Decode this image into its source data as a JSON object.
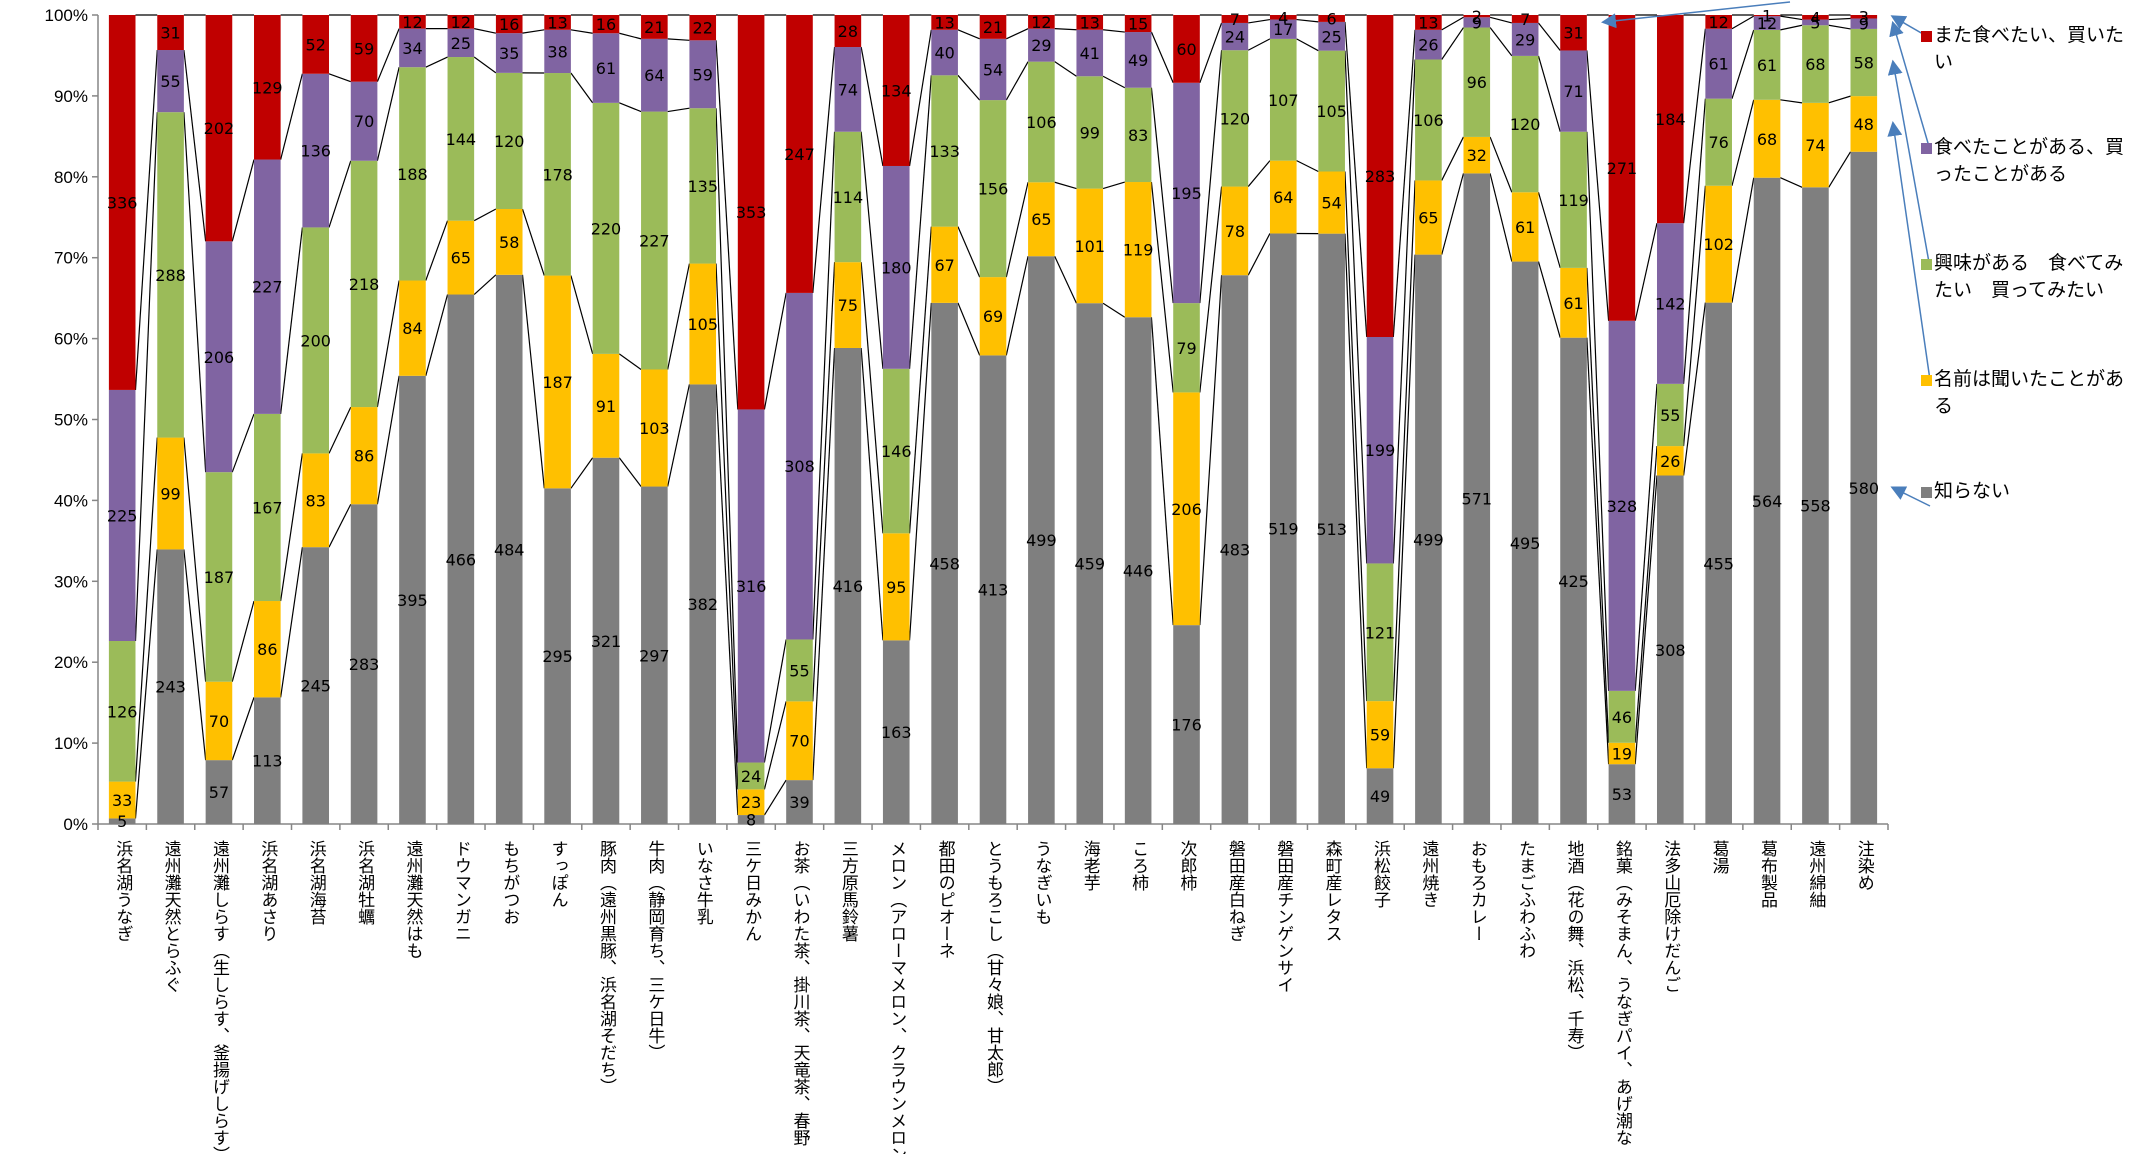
{
  "chart_data": {
    "type": "bar",
    "stacked": "percent",
    "ylim": [
      0,
      100
    ],
    "y_ticks": [
      "0%",
      "10%",
      "20%",
      "30%",
      "40%",
      "50%",
      "60%",
      "70%",
      "80%",
      "90%",
      "100%"
    ],
    "categories": [
      "浜名湖うなぎ",
      "遠州灘天然とらふぐ",
      "遠州灘しらす（生しらす、釜揚げしらす）",
      "浜名湖あさり",
      "浜名湖海苔",
      "浜名湖牡蠣",
      "遠州灘天然はも",
      "ドウマンガニ",
      "もちがつお",
      "すっぽん",
      "豚肉（遠州黒豚、浜名湖そだち）",
      "牛肉（静岡育ち、三ケ日牛）",
      "いなさ牛乳",
      "三ケ日みかん",
      "お茶（いわた茶、掛川茶、天竜茶、春野…",
      "三方原馬鈴薯",
      "メロン（アローマメロン、クラウンメロン）",
      "都田のピオーネ",
      "とうもろこし（甘々娘、甘太郎）",
      "うなぎいも",
      "海老芋",
      "ころ柿",
      "次郎柿",
      "磐田産白ねぎ",
      "磐田産チンゲンサイ",
      "森町産レタス",
      "浜松餃子",
      "遠州焼き",
      "おもろカレー",
      "たまごふわふわ",
      "地酒（花の舞、浜松、千寿）",
      "銘菓（みそまん、うなぎパイ、あげ潮な…",
      "法多山厄除けだんご",
      "葛湯",
      "葛布製品",
      "遠州綿紬",
      "注染め"
    ],
    "series": [
      {
        "name": "知らない",
        "color": "#7f7f7f",
        "values": [
          5,
          243,
          57,
          113,
          245,
          283,
          395,
          466,
          484,
          295,
          321,
          297,
          382,
          8,
          39,
          416,
          163,
          458,
          413,
          499,
          459,
          446,
          176,
          483,
          519,
          513,
          49,
          499,
          571,
          495,
          425,
          53,
          308,
          455,
          564,
          558,
          580
        ]
      },
      {
        "name": "名前は聞いたことがある",
        "color": "#ffc000",
        "values": [
          33,
          99,
          70,
          86,
          83,
          86,
          84,
          65,
          58,
          187,
          91,
          103,
          105,
          23,
          70,
          75,
          95,
          67,
          69,
          65,
          101,
          119,
          206,
          78,
          64,
          54,
          59,
          65,
          32,
          61,
          61,
          19,
          26,
          102,
          68,
          74,
          48
        ]
      },
      {
        "name": "興味がある 食べてみたい 買ってみたい",
        "color": "#9bbb59",
        "values": [
          126,
          288,
          187,
          167,
          200,
          218,
          188,
          144,
          120,
          178,
          220,
          227,
          135,
          24,
          55,
          114,
          146,
          133,
          156,
          106,
          99,
          83,
          79,
          120,
          107,
          105,
          121,
          106,
          96,
          120,
          119,
          46,
          55,
          76,
          61,
          68,
          58
        ]
      },
      {
        "name": "食べたことがある、買ったことがある",
        "color": "#8064a2",
        "values": [
          225,
          55,
          206,
          227,
          136,
          70,
          34,
          25,
          35,
          38,
          61,
          64,
          59,
          316,
          308,
          74,
          180,
          40,
          54,
          29,
          41,
          49,
          195,
          24,
          17,
          25,
          199,
          26,
          9,
          29,
          71,
          328,
          142,
          61,
          12,
          5,
          9
        ]
      },
      {
        "name": "また食べたい、買いたい",
        "color": "#c00000",
        "values": [
          336,
          31,
          202,
          129,
          52,
          59,
          12,
          12,
          16,
          13,
          16,
          21,
          22,
          353,
          247,
          28,
          134,
          13,
          21,
          12,
          13,
          15,
          60,
          7,
          4,
          6,
          283,
          13,
          2,
          7,
          31,
          271,
          184,
          12,
          1,
          4,
          3
        ]
      }
    ],
    "legend_position": "right",
    "grid": false
  },
  "legend": [
    {
      "label": "また食べたい、買いたい",
      "color": "#c00000"
    },
    {
      "label": "食べたことがある、買ったことがある",
      "color": "#8064a2"
    },
    {
      "label": "興味がある　食べてみたい　買ってみたい",
      "color": "#9bbb59"
    },
    {
      "label": "名前は聞いたことがある",
      "color": "#ffc000"
    },
    {
      "label": "知らない",
      "color": "#7f7f7f"
    }
  ]
}
